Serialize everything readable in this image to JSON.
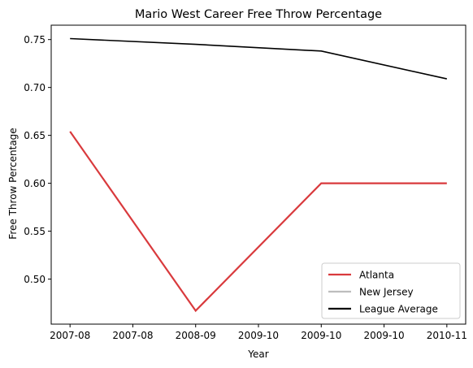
{
  "chart_data": {
    "type": "line",
    "title": "Mario West Career Free Throw Percentage",
    "xlabel": "Year",
    "ylabel": "Free Throw Percentage",
    "x_tick_labels": [
      "2007-08",
      "2007-08",
      "2008-09",
      "2009-10",
      "2009-10",
      "2009-10",
      "2010-11"
    ],
    "x_tick_positions": [
      0,
      0.5,
      1,
      1.5,
      2,
      2.5,
      3
    ],
    "xlim": [
      -0.15,
      3.15
    ],
    "y_ticks": [
      0.5,
      0.55,
      0.6,
      0.65,
      0.7,
      0.75
    ],
    "y_tick_labels": [
      "0.50",
      "0.55",
      "0.60",
      "0.65",
      "0.70",
      "0.75"
    ],
    "ylim": [
      0.453,
      0.765
    ],
    "grid": false,
    "legend_position": "lower-right",
    "series": [
      {
        "name": "Atlanta",
        "color": "#d93a3d",
        "x": [
          0,
          1,
          2,
          3
        ],
        "values": [
          0.654,
          0.467,
          0.6,
          0.6
        ]
      },
      {
        "name": "New Jersey",
        "color": "#bdbdbd",
        "x": [],
        "values": []
      },
      {
        "name": "League Average",
        "color": "#000000",
        "x": [
          0,
          1,
          2,
          3
        ],
        "values": [
          0.751,
          0.745,
          0.738,
          0.709
        ]
      }
    ]
  }
}
